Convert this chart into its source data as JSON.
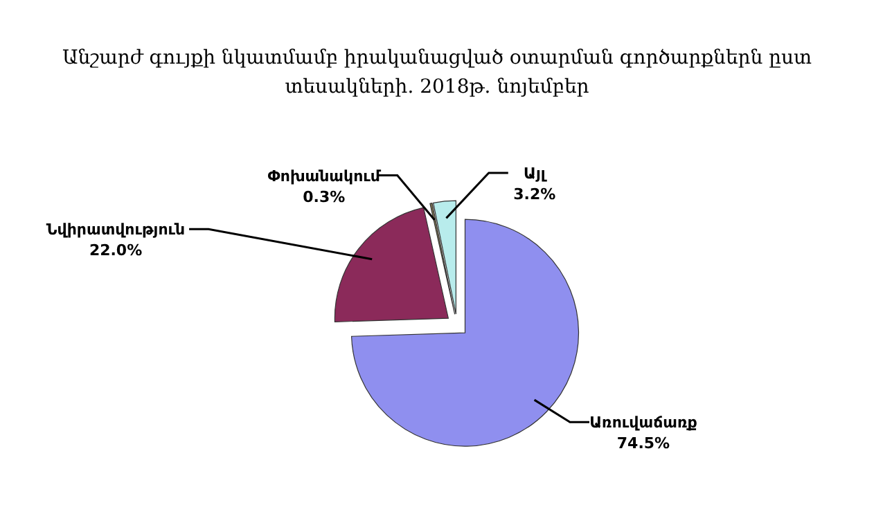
{
  "chart_data": {
    "type": "pie",
    "title": "Անշարժ գույքի նկատմամբ իրականացված օտարման գործարքներն ըստ տեսակների. 2018թ. նոյեմբեր",
    "categories": [
      "Առուվաճառք",
      "Նվիրատվություն",
      "Փոխանակում",
      "Այլ"
    ],
    "values": [
      74.5,
      22.0,
      0.3,
      3.2
    ],
    "colors": [
      "#8f8fef",
      "#8b2a5a",
      "#7a7050",
      "#b8ecec"
    ],
    "value_labels": [
      "74.5%",
      "22.0%",
      "0.3%",
      "3.2%"
    ],
    "legend": false
  }
}
